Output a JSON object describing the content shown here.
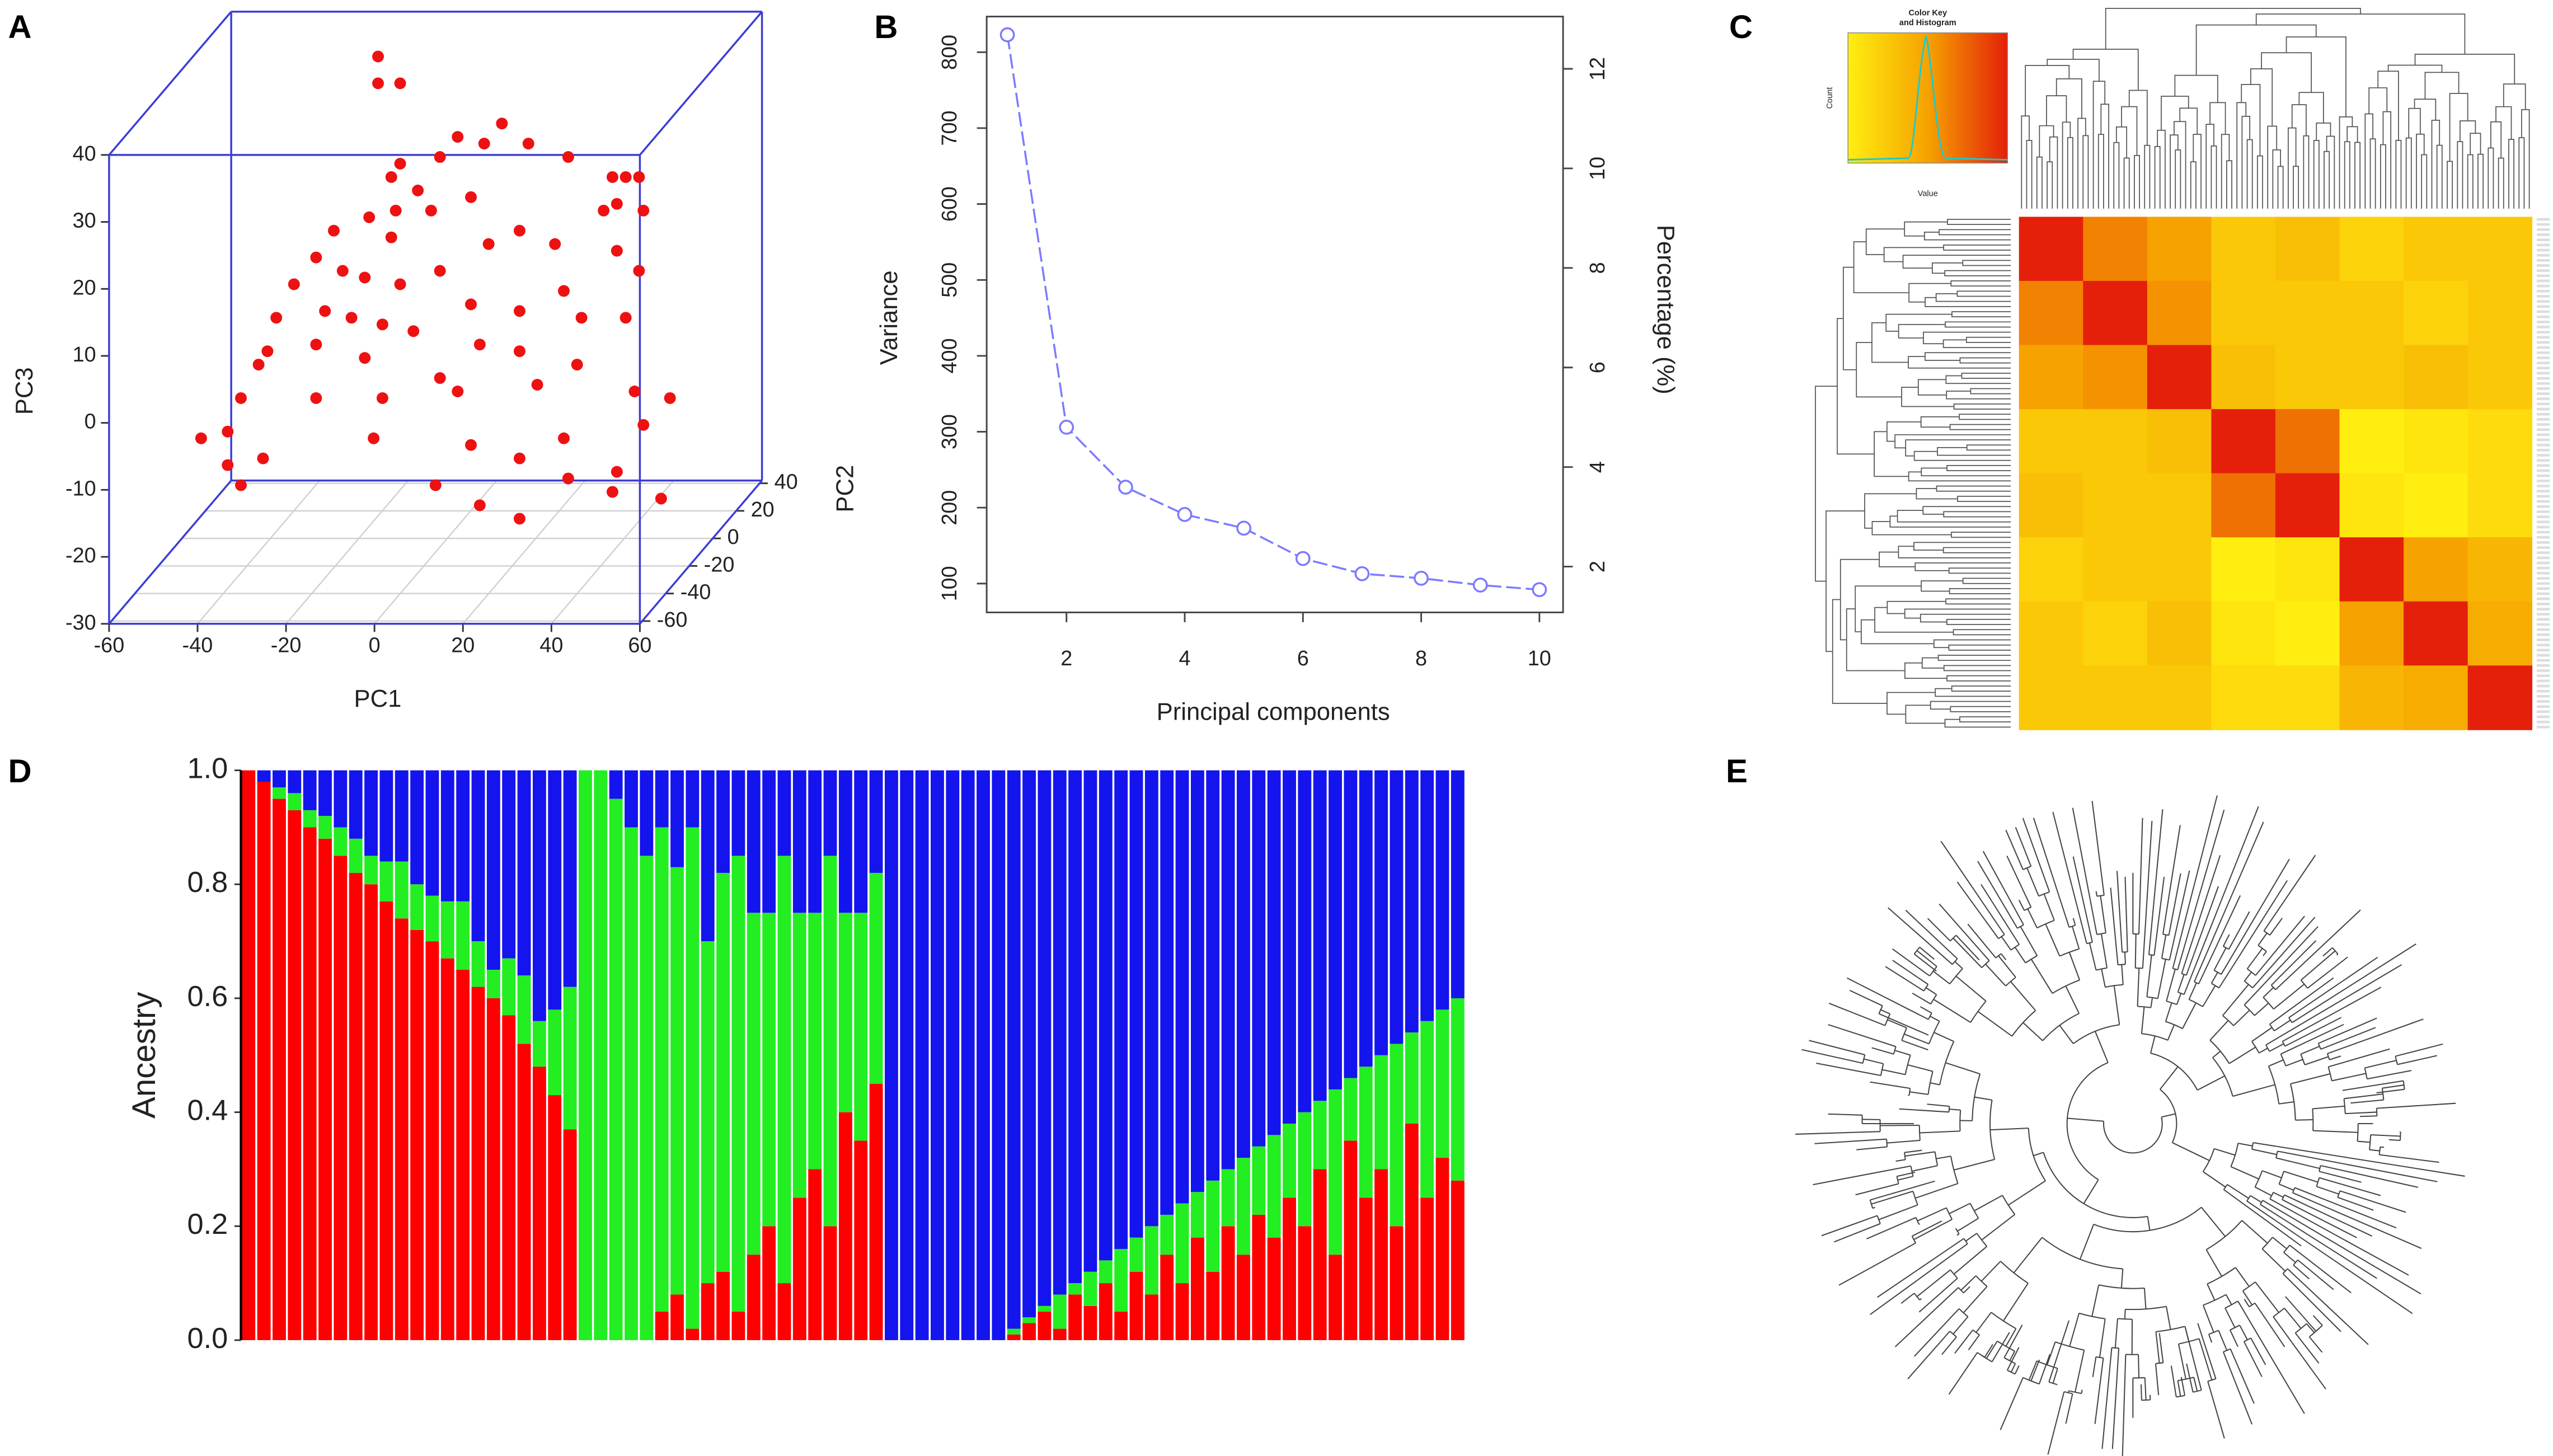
{
  "chart_data": [
    {
      "type": "scatter3d",
      "panel": "A",
      "xlabel": "PC1",
      "ylabel": "PC2",
      "zlabel": "PC3",
      "color": "#ee1111",
      "xlim": [
        -60,
        60
      ],
      "ylim": [
        -62,
        42
      ],
      "zlim": [
        -30,
        40
      ],
      "xticks": [
        -60,
        -40,
        -20,
        0,
        20,
        40,
        60
      ],
      "yticks": [
        -60,
        -40,
        -20,
        0,
        20,
        40
      ],
      "zticks": [
        -30,
        -20,
        -10,
        0,
        10,
        20,
        30,
        40
      ],
      "x": [
        -13,
        -13,
        -8,
        5,
        15,
        11,
        21,
        30,
        1,
        -8,
        -10,
        -4,
        -9,
        -1,
        8,
        40,
        43,
        46,
        41,
        38,
        47,
        12,
        19,
        27,
        41,
        -23,
        -15,
        -10,
        -27,
        -21,
        -16,
        -8,
        1,
        8,
        29,
        46,
        -32,
        -36,
        -25,
        -19,
        -12,
        -5,
        10,
        19,
        33,
        43,
        -38,
        -27,
        -16,
        1,
        19,
        32,
        -40,
        -27,
        -12,
        5,
        23,
        45,
        53,
        -44,
        -47,
        -14,
        8,
        29,
        47,
        -53,
        -47,
        -39,
        0,
        19,
        30,
        41,
        51,
        -44,
        10,
        19,
        40
      ],
      "y": [
        -10,
        -10,
        -10,
        -10,
        -10,
        -10,
        -10,
        -10,
        -10,
        -10,
        -10,
        -10,
        -10,
        -10,
        -10,
        -10,
        -10,
        -10,
        -10,
        -10,
        -10,
        -10,
        -10,
        -10,
        -10,
        -10,
        -10,
        -10,
        -10,
        -10,
        -10,
        -10,
        -10,
        -10,
        -10,
        -10,
        -10,
        -10,
        -10,
        -10,
        -10,
        -10,
        -10,
        -10,
        -10,
        -10,
        -10,
        -10,
        -10,
        -10,
        -10,
        -10,
        -10,
        -10,
        -10,
        -10,
        -10,
        -10,
        -10,
        -10,
        -10,
        -10,
        -10,
        -10,
        -10,
        -10,
        -10,
        -10,
        -10,
        -10,
        -10,
        -10,
        -10,
        -10,
        -10,
        -10,
        -10
      ],
      "z": [
        44,
        40,
        40,
        32,
        34,
        31,
        31,
        29,
        29,
        28,
        26,
        24,
        21,
        21,
        23,
        26,
        26,
        26,
        22,
        21,
        21,
        16,
        18,
        16,
        15,
        18,
        20,
        17,
        14,
        12,
        11,
        10,
        12,
        7,
        9,
        12,
        10,
        5,
        6,
        5,
        4,
        3,
        1,
        6,
        5,
        5,
        0,
        1,
        -1,
        -4,
        0,
        -2,
        -2,
        -7,
        -7,
        -6,
        -5,
        -6,
        -7,
        -7,
        -12,
        -13,
        -14,
        -13,
        -11,
        -13,
        -17,
        -16,
        -20,
        -16,
        -19,
        -18,
        -22,
        -20,
        -23,
        -25,
        -21
      ]
    },
    {
      "type": "line",
      "panel": "B",
      "xlabel": "Principal components",
      "ylabel": "Variance",
      "y2label": "Percentage (%)",
      "color": "#7b7bff",
      "x": [
        1,
        2,
        3,
        4,
        5,
        6,
        7,
        8,
        9,
        10
      ],
      "values": [
        823,
        306,
        227,
        191,
        173,
        133,
        113,
        107,
        98,
        92
      ],
      "xlim": [
        0.65,
        10.4
      ],
      "xticks": [
        2,
        4,
        6,
        8,
        10
      ],
      "ylim": [
        62,
        847
      ],
      "yticks": [
        100,
        200,
        300,
        400,
        500,
        600,
        700,
        800
      ],
      "y2lim": [
        1.08,
        13.05
      ],
      "y2ticks": [
        2,
        4,
        6,
        8,
        10,
        12
      ]
    },
    {
      "type": "heatmap",
      "panel": "C",
      "color_key_title": [
        "Color Key",
        "and Histogram"
      ],
      "color_key_xlabel": "Value",
      "color_key_ylabel": "Count",
      "colors": [
        "#ffee10",
        "#f6a200",
        "#e4200a"
      ],
      "values": [
        [
          1,
          0.7,
          0.6,
          0.4,
          0.45,
          0.35,
          0.4,
          0.4
        ],
        [
          0.7,
          1,
          0.65,
          0.4,
          0.4,
          0.4,
          0.35,
          0.4
        ],
        [
          0.6,
          0.65,
          1,
          0.45,
          0.4,
          0.4,
          0.45,
          0.4
        ],
        [
          0.4,
          0.4,
          0.45,
          1,
          0.75,
          0.2,
          0.25,
          0.3
        ],
        [
          0.45,
          0.4,
          0.4,
          0.75,
          1,
          0.25,
          0.2,
          0.3
        ],
        [
          0.35,
          0.4,
          0.4,
          0.2,
          0.25,
          1,
          0.6,
          0.5
        ],
        [
          0.4,
          0.35,
          0.45,
          0.25,
          0.2,
          0.6,
          1,
          0.55
        ],
        [
          0.4,
          0.4,
          0.4,
          0.3,
          0.3,
          0.5,
          0.55,
          1
        ]
      ]
    },
    {
      "type": "stacked_bar",
      "panel": "D",
      "ylabel": "Ancestry",
      "ylim": [
        0,
        1
      ],
      "yticks": [
        {
          "value": 0,
          "label": "0.0"
        },
        0.2,
        0.4,
        0.6,
        0.8,
        {
          "value": 1,
          "label": "1.0"
        }
      ],
      "series": [
        {
          "color": "#ff0000",
          "values": [
            1.0,
            0.98,
            0.95,
            0.93,
            0.9,
            0.88,
            0.85,
            0.82,
            0.8,
            0.77,
            0.74,
            0.72,
            0.7,
            0.67,
            0.65,
            0.62,
            0.6,
            0.57,
            0.52,
            0.48,
            0.43,
            0.37,
            0,
            0,
            0,
            0,
            0,
            0.05,
            0.08,
            0.02,
            0.1,
            0.12,
            0.05,
            0.15,
            0.2,
            0.1,
            0.25,
            0.3,
            0.2,
            0.4,
            0.35,
            0.45,
            0,
            0,
            0,
            0,
            0,
            0,
            0,
            0,
            0.01,
            0.03,
            0.05,
            0.02,
            0.08,
            0.06,
            0.1,
            0.05,
            0.12,
            0.08,
            0.15,
            0.1,
            0.18,
            0.12,
            0.2,
            0.15,
            0.22,
            0.18,
            0.25,
            0.2,
            0.3,
            0.15,
            0.35,
            0.25,
            0.3,
            0.2,
            0.38,
            0.25,
            0.32,
            0.28
          ]
        },
        {
          "color": "#22ee22",
          "values": [
            0,
            0,
            0.02,
            0.03,
            0.03,
            0.04,
            0.05,
            0.06,
            0.05,
            0.07,
            0.1,
            0.08,
            0.08,
            0.1,
            0.12,
            0.08,
            0.05,
            0.1,
            0.12,
            0.08,
            0.15,
            0.25,
            1,
            1,
            0.95,
            0.9,
            0.85,
            0.85,
            0.75,
            0.88,
            0.6,
            0.7,
            0.8,
            0.6,
            0.55,
            0.75,
            0.5,
            0.45,
            0.65,
            0.35,
            0.4,
            0.37,
            0,
            0,
            0,
            0,
            0,
            0,
            0,
            0,
            0.01,
            0.01,
            0.01,
            0.06,
            0.02,
            0.06,
            0.04,
            0.11,
            0.06,
            0.12,
            0.07,
            0.14,
            0.08,
            0.16,
            0.1,
            0.17,
            0.12,
            0.18,
            0.13,
            0.2,
            0.12,
            0.29,
            0.11,
            0.23,
            0.2,
            0.32,
            0.16,
            0.31,
            0.26,
            0.32
          ]
        },
        {
          "color": "#1414ee",
          "values": [
            0,
            0.02,
            0.03,
            0.04,
            0.07,
            0.08,
            0.1,
            0.12,
            0.15,
            0.16,
            0.16,
            0.2,
            0.22,
            0.23,
            0.23,
            0.3,
            0.35,
            0.33,
            0.36,
            0.44,
            0.42,
            0.38,
            0,
            0,
            0.05,
            0.1,
            0.15,
            0.1,
            0.17,
            0.1,
            0.3,
            0.18,
            0.15,
            0.25,
            0.25,
            0.15,
            0.25,
            0.25,
            0.15,
            0.25,
            0.25,
            0.18,
            1,
            1,
            1,
            1,
            1,
            1,
            1,
            1,
            0.98,
            0.96,
            0.94,
            0.92,
            0.9,
            0.88,
            0.86,
            0.84,
            0.82,
            0.8,
            0.78,
            0.76,
            0.74,
            0.72,
            0.7,
            0.68,
            0.66,
            0.64,
            0.62,
            0.6,
            0.58,
            0.56,
            0.54,
            0.52,
            0.5,
            0.48,
            0.46,
            0.44,
            0.42,
            0.4
          ]
        }
      ]
    },
    {
      "type": "tree",
      "panel": "E"
    }
  ]
}
